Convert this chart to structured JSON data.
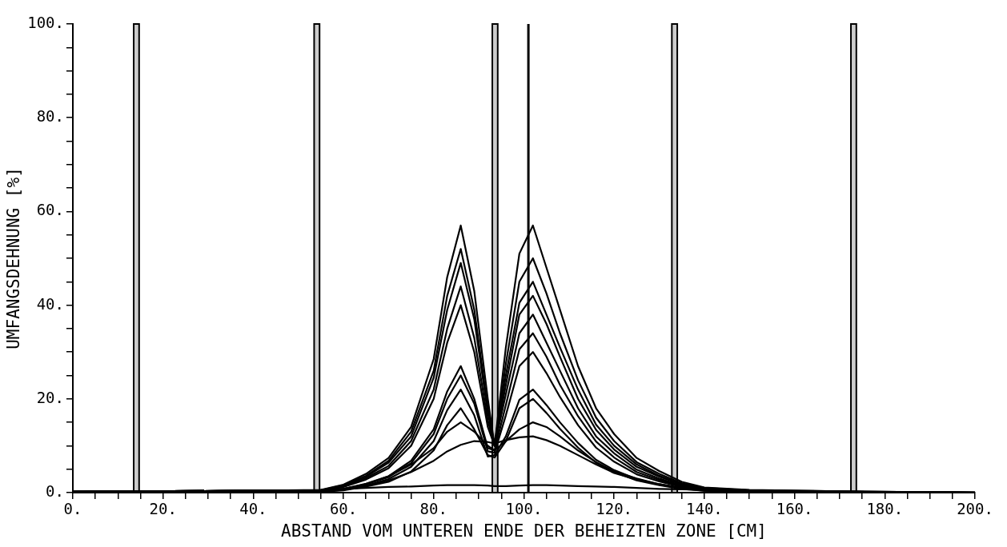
{
  "chart_data": {
    "type": "line",
    "xlabel": "ABSTAND VOM UNTEREN ENDE DER BEHEIZTEN ZONE [CM]",
    "ylabel": "UMFANGSDEHNUNG [%]",
    "x": [
      0,
      40,
      55,
      60,
      65,
      70,
      75,
      80,
      83,
      86,
      89,
      92,
      93.5,
      96,
      99,
      102,
      105,
      108,
      112,
      116,
      120,
      125,
      130,
      135,
      140,
      150,
      170,
      200
    ],
    "series": [
      {
        "color": "#000000",
        "values": [
          0.2,
          0.4,
          0.6,
          1.7,
          4,
          7.4,
          14,
          28.5,
          46,
          57,
          43,
          20,
          10,
          31,
          51,
          57,
          48,
          39,
          27,
          18,
          12.5,
          7.4,
          4.6,
          2.3,
          1.1,
          0.6,
          0.3,
          0
        ]
      },
      {
        "color": "#000000",
        "values": [
          0.2,
          0.4,
          0.5,
          1.6,
          3.6,
          6.8,
          13,
          26,
          42,
          52,
          39,
          18,
          10,
          27.5,
          45,
          50,
          42.5,
          34,
          24,
          16,
          11,
          6.5,
          4,
          2,
          1,
          0.5,
          0.3,
          0
        ]
      },
      {
        "color": "#000000",
        "values": [
          0.2,
          0.4,
          0.5,
          1.5,
          3.4,
          6.4,
          12,
          24.5,
          39,
          49,
          37,
          17,
          10,
          25,
          40.5,
          45,
          38,
          31,
          22,
          14.5,
          10,
          6,
          3.6,
          1.8,
          0.9,
          0.5,
          0.2,
          0
        ]
      },
      {
        "color": "#000000",
        "values": [
          0.2,
          0.4,
          0.4,
          1.3,
          3.1,
          5.7,
          11,
          22,
          35,
          44,
          33,
          15.4,
          10,
          23,
          38,
          42,
          36,
          29,
          20,
          13.4,
          9.2,
          5.5,
          3.4,
          1.7,
          0.8,
          0.4,
          0.2,
          0
        ]
      },
      {
        "color": "#000000",
        "values": [
          0.2,
          0.4,
          0.4,
          1.2,
          2.8,
          5.2,
          10,
          20,
          32,
          40,
          30,
          14,
          10,
          21,
          34,
          38,
          32,
          26,
          18,
          12,
          8.4,
          4.9,
          3,
          1.5,
          0.8,
          0.4,
          0.2,
          0
        ]
      },
      {
        "color": "#000000",
        "values": [
          0.2,
          0.4,
          0.3,
          0.8,
          1.9,
          3.5,
          6.8,
          13.5,
          21.6,
          27,
          20,
          9.5,
          9,
          18.7,
          30.6,
          34,
          29,
          23,
          16.3,
          10.9,
          7.5,
          4.4,
          2.7,
          1.4,
          0.7,
          0.3,
          0.2,
          0
        ]
      },
      {
        "color": "#000000",
        "values": [
          0.2,
          0.4,
          0.3,
          0.8,
          1.8,
          3.3,
          6.3,
          12.5,
          20,
          25,
          19,
          8.8,
          8.5,
          16.5,
          27,
          30,
          25.5,
          20.4,
          14.4,
          9.6,
          6.6,
          3.9,
          2.4,
          1.2,
          0.6,
          0.3,
          0.2,
          0
        ]
      },
      {
        "color": "#000000",
        "values": [
          0.2,
          0.4,
          0.2,
          0.7,
          1.5,
          2.9,
          5.5,
          11,
          17.6,
          22,
          16.5,
          7.7,
          8,
          12,
          19.8,
          22,
          18.7,
          15,
          10.6,
          7,
          4.8,
          2.9,
          1.8,
          0.9,
          0.4,
          0.2,
          0.1,
          0
        ]
      },
      {
        "color": "#000000",
        "values": [
          0.2,
          0.4,
          0.2,
          0.5,
          1.3,
          2.3,
          4.5,
          9,
          14.4,
          18,
          13.5,
          8,
          7.5,
          11,
          18,
          20,
          17,
          13.6,
          9.6,
          6.4,
          4.4,
          2.6,
          1.6,
          0.8,
          0.4,
          0.2,
          0.1,
          0
        ]
      },
      {
        "color": "#000000",
        "values": [
          0.2,
          0.4,
          0.3,
          0.8,
          1.8,
          3.5,
          6,
          9.5,
          13,
          15,
          13,
          10,
          9,
          11,
          13.5,
          15,
          14,
          12,
          9,
          6.5,
          4.5,
          3,
          1.8,
          1,
          0.5,
          0.2,
          0.1,
          0
        ]
      },
      {
        "color": "#000000",
        "values": [
          0.1,
          0.3,
          0.2,
          0.6,
          1.4,
          2.6,
          4.4,
          6.8,
          8.8,
          10.2,
          11,
          10.8,
          10.5,
          11.2,
          11.8,
          12,
          11.2,
          10,
          8,
          6,
          4.2,
          2.8,
          1.7,
          1,
          0.6,
          0.3,
          0.2,
          0.1
        ]
      },
      {
        "color": "#000000",
        "x": [
          55,
          60,
          65,
          70,
          75,
          80,
          83,
          86,
          89,
          92,
          93.5,
          96,
          99,
          102,
          105,
          108,
          112,
          116,
          120,
          125,
          130,
          135,
          140,
          150
        ],
        "values": [
          0.6,
          0.8,
          1,
          1.2,
          1.3,
          1.5,
          1.6,
          1.6,
          1.6,
          1.5,
          1.4,
          1.4,
          1.5,
          1.6,
          1.6,
          1.5,
          1.4,
          1.3,
          1.2,
          1,
          0.8,
          0.7,
          0.6,
          0.4
        ]
      }
    ],
    "xlim": [
      0,
      200
    ],
    "xticks": [
      {
        "value": 0,
        "label": "0."
      },
      {
        "value": 5,
        "label": null
      },
      {
        "value": 10,
        "label": null
      },
      {
        "value": 15,
        "label": null
      },
      {
        "value": 20,
        "label": "20."
      },
      {
        "value": 25,
        "label": null
      },
      {
        "value": 30,
        "label": null
      },
      {
        "value": 35,
        "label": null
      },
      {
        "value": 40,
        "label": "40."
      },
      {
        "value": 45,
        "label": null
      },
      {
        "value": 50,
        "label": null
      },
      {
        "value": 55,
        "label": null
      },
      {
        "value": 60,
        "label": "60."
      },
      {
        "value": 65,
        "label": null
      },
      {
        "value": 70,
        "label": null
      },
      {
        "value": 75,
        "label": null
      },
      {
        "value": 80,
        "label": "80."
      },
      {
        "value": 85,
        "label": null
      },
      {
        "value": 90,
        "label": null
      },
      {
        "value": 95,
        "label": null
      },
      {
        "value": 100,
        "label": "100."
      },
      {
        "value": 105,
        "label": null
      },
      {
        "value": 110,
        "label": null
      },
      {
        "value": 115,
        "label": null
      },
      {
        "value": 120,
        "label": "120."
      },
      {
        "value": 125,
        "label": null
      },
      {
        "value": 130,
        "label": null
      },
      {
        "value": 135,
        "label": null
      },
      {
        "value": 140,
        "label": "140."
      },
      {
        "value": 145,
        "label": null
      },
      {
        "value": 150,
        "label": null
      },
      {
        "value": 155,
        "label": null
      },
      {
        "value": 160,
        "label": "160."
      },
      {
        "value": 165,
        "label": null
      },
      {
        "value": 170,
        "label": null
      },
      {
        "value": 175,
        "label": null
      },
      {
        "value": 180,
        "label": "180."
      },
      {
        "value": 185,
        "label": null
      },
      {
        "value": 190,
        "label": null
      },
      {
        "value": 195,
        "label": null
      },
      {
        "value": 200,
        "label": "200."
      }
    ],
    "ylim": [
      0,
      100
    ],
    "yticks": [
      {
        "value": 0,
        "label": "0."
      },
      {
        "value": 5,
        "label": null
      },
      {
        "value": 10,
        "label": null
      },
      {
        "value": 15,
        "label": null
      },
      {
        "value": 20,
        "label": "20."
      },
      {
        "value": 25,
        "label": null
      },
      {
        "value": 30,
        "label": null
      },
      {
        "value": 35,
        "label": null
      },
      {
        "value": 40,
        "label": "40."
      },
      {
        "value": 45,
        "label": null
      },
      {
        "value": 50,
        "label": null
      },
      {
        "value": 55,
        "label": null
      },
      {
        "value": 60,
        "label": "60."
      },
      {
        "value": 65,
        "label": null
      },
      {
        "value": 70,
        "label": null
      },
      {
        "value": 75,
        "label": null
      },
      {
        "value": 80,
        "label": "80."
      },
      {
        "value": 85,
        "label": null
      },
      {
        "value": 90,
        "label": null
      },
      {
        "value": 95,
        "label": null
      },
      {
        "value": 100,
        "label": "100."
      }
    ],
    "ref_lines": [
      {
        "axis": "x",
        "value": 101,
        "color": "#000000",
        "line_style": "solid"
      }
    ],
    "bands": [
      {
        "axis": "x",
        "from": 13.5,
        "to": 14.7,
        "color": "#000000"
      },
      {
        "axis": "x",
        "from": 53.5,
        "to": 54.7,
        "color": "#000000"
      },
      {
        "axis": "x",
        "from": 93,
        "to": 94.2,
        "color": "#000000"
      },
      {
        "axis": "x",
        "from": 132.8,
        "to": 134,
        "color": "#000000"
      },
      {
        "axis": "x",
        "from": 172.5,
        "to": 173.7,
        "color": "#000000"
      }
    ],
    "grid": false,
    "legend": false,
    "marker": "none",
    "line_style": "solid"
  }
}
